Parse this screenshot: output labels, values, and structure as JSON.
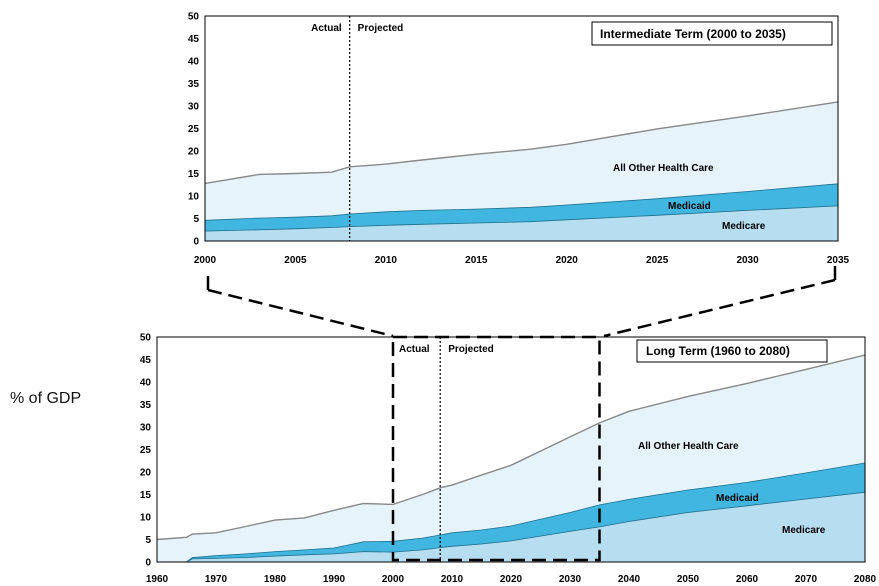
{
  "ylabel": "% of GDP",
  "colors": {
    "all_other": "#e6f3fb",
    "medicaid": "#41b6e0",
    "medicare": "#b7ddf1",
    "total_line": "#888888",
    "frame": "#000000"
  },
  "chart_data": [
    {
      "type": "area",
      "title": "Intermediate Term (2000 to 2035)",
      "actual_label": "Actual",
      "projected_label": "Projected",
      "divider_x": 2008,
      "xlim": [
        2000,
        2035
      ],
      "ylim": [
        0,
        50
      ],
      "xticks": [
        2000,
        2005,
        2010,
        2015,
        2020,
        2025,
        2030,
        2035
      ],
      "yticks": [
        0,
        5,
        10,
        15,
        20,
        25,
        30,
        35,
        40,
        45,
        50
      ],
      "stacked": true,
      "x": [
        2000,
        2003,
        2005,
        2007,
        2008,
        2010,
        2012,
        2015,
        2018,
        2020,
        2025,
        2030,
        2035
      ],
      "series": [
        {
          "name": "Medicare",
          "values": [
            2.2,
            2.5,
            2.7,
            3.0,
            3.2,
            3.5,
            3.7,
            4.0,
            4.3,
            4.7,
            5.7,
            6.8,
            7.8
          ]
        },
        {
          "name": "Medicaid",
          "values": [
            2.4,
            2.6,
            2.6,
            2.6,
            2.8,
            3.0,
            3.1,
            3.1,
            3.2,
            3.3,
            3.7,
            4.2,
            4.9
          ]
        },
        {
          "name": "All Other Health Care",
          "values": [
            8.2,
            9.7,
            9.7,
            9.7,
            10.5,
            10.6,
            11.2,
            12.2,
            12.9,
            13.5,
            15.5,
            16.8,
            18.2
          ]
        }
      ],
      "legend": [
        "All Other Health Care",
        "Medicaid",
        "Medicare"
      ]
    },
    {
      "type": "area",
      "title": "Long Term (1960 to 2080)",
      "actual_label": "Actual",
      "projected_label": "Projected",
      "divider_x": 2008,
      "xlim": [
        1960,
        2080
      ],
      "ylim": [
        0,
        50
      ],
      "xticks": [
        1960,
        1970,
        1980,
        1990,
        2000,
        2010,
        2020,
        2030,
        2040,
        2050,
        2060,
        2070,
        2080
      ],
      "yticks": [
        0,
        5,
        10,
        15,
        20,
        25,
        30,
        35,
        40,
        45,
        50
      ],
      "stacked": true,
      "zoom_range": [
        2000,
        2035
      ],
      "x": [
        1960,
        1965,
        1966,
        1970,
        1975,
        1980,
        1985,
        1990,
        1995,
        2000,
        2005,
        2008,
        2010,
        2015,
        2020,
        2030,
        2035,
        2040,
        2050,
        2060,
        2070,
        2080
      ],
      "series": [
        {
          "name": "Medicare",
          "values": [
            0.0,
            0.0,
            0.7,
            0.8,
            1.0,
            1.3,
            1.6,
            1.8,
            2.3,
            2.2,
            2.7,
            3.2,
            3.5,
            4.0,
            4.7,
            6.8,
            7.8,
            9.0,
            11.0,
            12.5,
            14.0,
            15.5
          ]
        },
        {
          "name": "Medicaid",
          "values": [
            0.0,
            0.0,
            0.3,
            0.6,
            0.8,
            1.0,
            1.1,
            1.3,
            2.2,
            2.4,
            2.6,
            2.8,
            3.0,
            3.1,
            3.3,
            4.2,
            4.9,
            4.9,
            5.0,
            5.2,
            5.8,
            6.5
          ]
        },
        {
          "name": "All Other Health Care",
          "values": [
            5.0,
            5.5,
            5.2,
            5.1,
            6.1,
            7.0,
            7.1,
            8.4,
            8.5,
            8.2,
            9.7,
            10.5,
            10.6,
            12.2,
            13.5,
            16.8,
            18.2,
            19.6,
            20.8,
            22.0,
            23.0,
            24.0
          ]
        }
      ],
      "legend": [
        "All Other Health Care",
        "Medicaid",
        "Medicare"
      ]
    }
  ]
}
